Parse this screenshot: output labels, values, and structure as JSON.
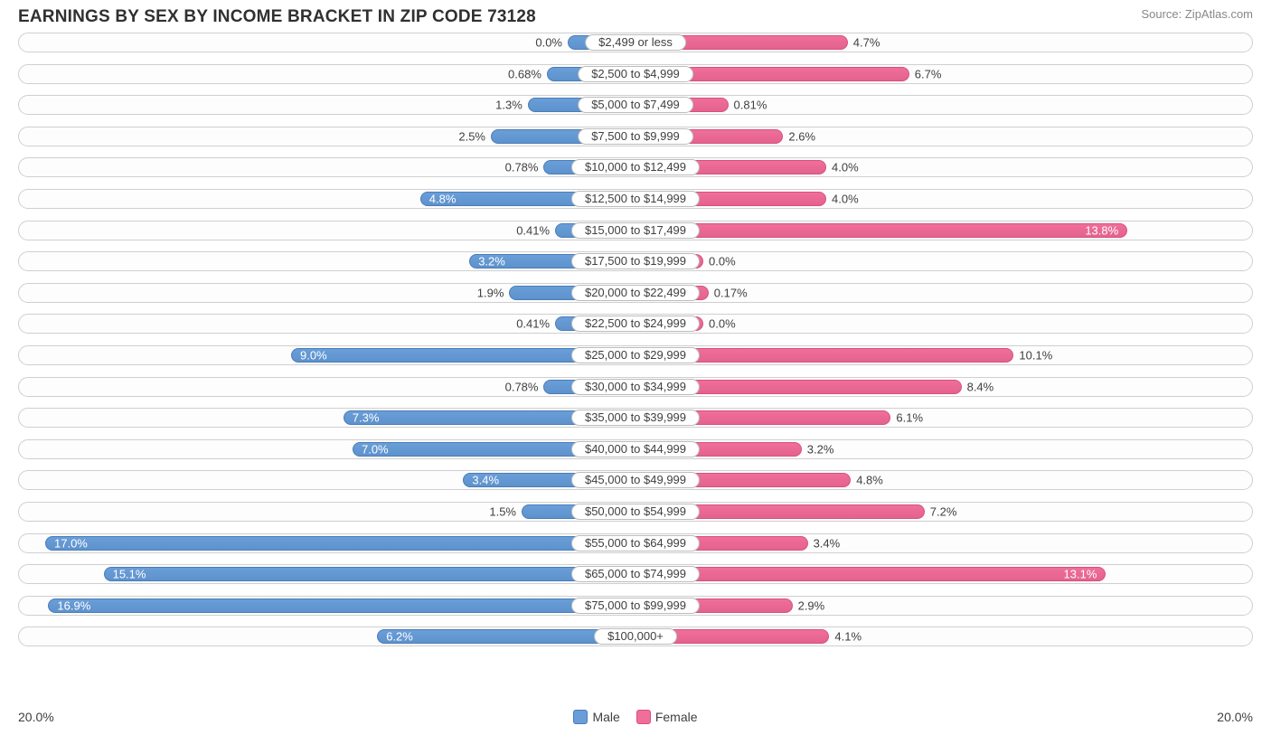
{
  "title": "EARNINGS BY SEX BY INCOME BRACKET IN ZIP CODE 73128",
  "source": "Source: ZipAtlas.com",
  "chart": {
    "type": "diverging-bar",
    "max_percent": 20.0,
    "background_color": "#ffffff",
    "row_border_color": "#cfcfcf",
    "text_color": "#404040",
    "male_color": "#6a9ed8",
    "male_border": "#4a7db8",
    "female_color": "#ef6f9a",
    "female_border": "#d85080",
    "left_axis_label": "20.0%",
    "right_axis_label": "20.0%",
    "legend": {
      "male": "Male",
      "female": "Female"
    },
    "rows": [
      {
        "bracket": "$2,499 or less",
        "male": 0.0,
        "female": 4.7,
        "male_label": "0.0%",
        "female_label": "4.7%"
      },
      {
        "bracket": "$2,500 to $4,999",
        "male": 0.68,
        "female": 6.7,
        "male_label": "0.68%",
        "female_label": "6.7%"
      },
      {
        "bracket": "$5,000 to $7,499",
        "male": 1.3,
        "female": 0.81,
        "male_label": "1.3%",
        "female_label": "0.81%"
      },
      {
        "bracket": "$7,500 to $9,999",
        "male": 2.5,
        "female": 2.6,
        "male_label": "2.5%",
        "female_label": "2.6%"
      },
      {
        "bracket": "$10,000 to $12,499",
        "male": 0.78,
        "female": 4.0,
        "male_label": "0.78%",
        "female_label": "4.0%"
      },
      {
        "bracket": "$12,500 to $14,999",
        "male": 4.8,
        "female": 4.0,
        "male_label": "4.8%",
        "female_label": "4.0%"
      },
      {
        "bracket": "$15,000 to $17,499",
        "male": 0.41,
        "female": 13.8,
        "male_label": "0.41%",
        "female_label": "13.8%"
      },
      {
        "bracket": "$17,500 to $19,999",
        "male": 3.2,
        "female": 0.0,
        "male_label": "3.2%",
        "female_label": "0.0%"
      },
      {
        "bracket": "$20,000 to $22,499",
        "male": 1.9,
        "female": 0.17,
        "male_label": "1.9%",
        "female_label": "0.17%"
      },
      {
        "bracket": "$22,500 to $24,999",
        "male": 0.41,
        "female": 0.0,
        "male_label": "0.41%",
        "female_label": "0.0%"
      },
      {
        "bracket": "$25,000 to $29,999",
        "male": 9.0,
        "female": 10.1,
        "male_label": "9.0%",
        "female_label": "10.1%"
      },
      {
        "bracket": "$30,000 to $34,999",
        "male": 0.78,
        "female": 8.4,
        "male_label": "0.78%",
        "female_label": "8.4%"
      },
      {
        "bracket": "$35,000 to $39,999",
        "male": 7.3,
        "female": 6.1,
        "male_label": "7.3%",
        "female_label": "6.1%"
      },
      {
        "bracket": "$40,000 to $44,999",
        "male": 7.0,
        "female": 3.2,
        "male_label": "7.0%",
        "female_label": "3.2%"
      },
      {
        "bracket": "$45,000 to $49,999",
        "male": 3.4,
        "female": 4.8,
        "male_label": "3.4%",
        "female_label": "4.8%"
      },
      {
        "bracket": "$50,000 to $54,999",
        "male": 1.5,
        "female": 7.2,
        "male_label": "1.5%",
        "female_label": "7.2%"
      },
      {
        "bracket": "$55,000 to $64,999",
        "male": 17.0,
        "female": 3.4,
        "male_label": "17.0%",
        "female_label": "3.4%"
      },
      {
        "bracket": "$65,000 to $74,999",
        "male": 15.1,
        "female": 13.1,
        "male_label": "15.1%",
        "female_label": "13.1%"
      },
      {
        "bracket": "$75,000 to $99,999",
        "male": 16.9,
        "female": 2.9,
        "male_label": "16.9%",
        "female_label": "2.9%"
      },
      {
        "bracket": "$100,000+",
        "male": 6.2,
        "female": 4.1,
        "male_label": "6.2%",
        "female_label": "4.1%"
      }
    ]
  }
}
